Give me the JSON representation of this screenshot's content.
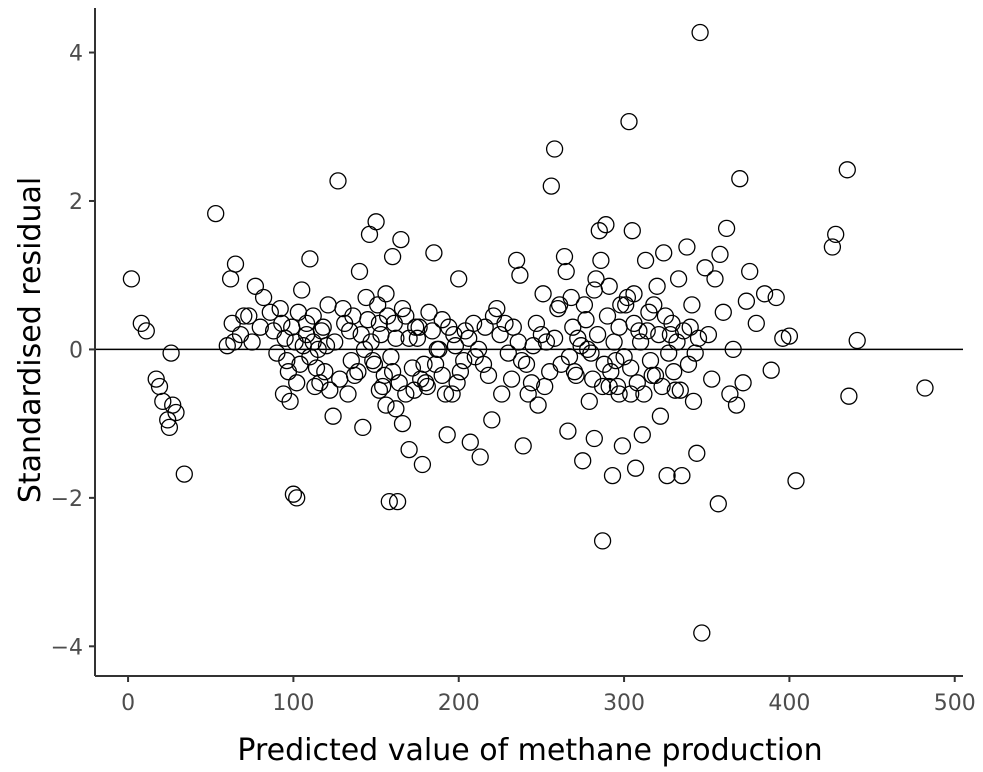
{
  "chart_data": {
    "type": "scatter",
    "title": "",
    "xlabel": "Predicted value of methane production",
    "ylabel": "Standardised residual",
    "xlim": [
      -20,
      505
    ],
    "ylim": [
      -4.4,
      4.6
    ],
    "x_ticks": [
      0,
      100,
      200,
      300,
      400,
      500
    ],
    "y_ticks": [
      -4,
      -2,
      0,
      2,
      4
    ],
    "x_tick_labels": [
      "0",
      "100",
      "200",
      "300",
      "400",
      "500"
    ],
    "y_tick_labels": [
      "−4",
      "−2",
      "0",
      "2",
      "4"
    ],
    "grid": false,
    "reference_line_y": 0,
    "marker": "open-circle",
    "points": [
      [
        2,
        0.95
      ],
      [
        8,
        0.35
      ],
      [
        11,
        0.25
      ],
      [
        17,
        -0.4
      ],
      [
        19,
        -0.5
      ],
      [
        21,
        -0.7
      ],
      [
        24,
        -0.95
      ],
      [
        25,
        -1.05
      ],
      [
        27,
        -0.75
      ],
      [
        29,
        -0.85
      ],
      [
        26,
        -0.05
      ],
      [
        34,
        -1.68
      ],
      [
        53,
        1.83
      ],
      [
        62,
        0.95
      ],
      [
        65,
        1.15
      ],
      [
        64,
        0.1
      ],
      [
        70,
        0.45
      ],
      [
        77,
        0.85
      ],
      [
        82,
        0.7
      ],
      [
        80,
        0.3
      ],
      [
        88,
        0.25
      ],
      [
        92,
        0.55
      ],
      [
        95,
        0.15
      ],
      [
        94,
        -0.6
      ],
      [
        98,
        -0.7
      ],
      [
        100,
        -1.95
      ],
      [
        102,
        -2.0
      ],
      [
        103,
        0.5
      ],
      [
        105,
        0.8
      ],
      [
        108,
        0.35
      ],
      [
        110,
        1.22
      ],
      [
        112,
        0.1
      ],
      [
        114,
        -0.25
      ],
      [
        116,
        -0.45
      ],
      [
        118,
        0.3
      ],
      [
        120,
        0.05
      ],
      [
        122,
        -0.55
      ],
      [
        124,
        -0.9
      ],
      [
        127,
        2.27
      ],
      [
        130,
        0.55
      ],
      [
        134,
        0.25
      ],
      [
        137,
        -0.35
      ],
      [
        140,
        1.05
      ],
      [
        142,
        -1.05
      ],
      [
        144,
        0.7
      ],
      [
        146,
        1.55
      ],
      [
        148,
        -0.15
      ],
      [
        150,
        1.72
      ],
      [
        152,
        0.35
      ],
      [
        154,
        -0.5
      ],
      [
        156,
        -0.75
      ],
      [
        158,
        -2.05
      ],
      [
        160,
        1.25
      ],
      [
        162,
        0.15
      ],
      [
        163,
        -2.05
      ],
      [
        165,
        1.48
      ],
      [
        166,
        -1.0
      ],
      [
        168,
        0.45
      ],
      [
        170,
        -1.35
      ],
      [
        172,
        -0.25
      ],
      [
        174,
        0.3
      ],
      [
        178,
        -1.55
      ],
      [
        180,
        -0.45
      ],
      [
        185,
        1.3
      ],
      [
        188,
        0.0
      ],
      [
        190,
        -0.35
      ],
      [
        193,
        -1.15
      ],
      [
        196,
        -0.6
      ],
      [
        200,
        0.95
      ],
      [
        204,
        0.25
      ],
      [
        207,
        -1.25
      ],
      [
        210,
        -0.1
      ],
      [
        213,
        -1.45
      ],
      [
        216,
        0.3
      ],
      [
        220,
        -0.95
      ],
      [
        223,
        0.55
      ],
      [
        228,
        0.35
      ],
      [
        232,
        -0.4
      ],
      [
        235,
        1.2
      ],
      [
        237,
        1.0
      ],
      [
        239,
        -1.3
      ],
      [
        242,
        -0.6
      ],
      [
        245,
        0.05
      ],
      [
        248,
        -0.75
      ],
      [
        251,
        0.75
      ],
      [
        253,
        0.1
      ],
      [
        256,
        2.2
      ],
      [
        258,
        2.7
      ],
      [
        260,
        0.55
      ],
      [
        264,
        1.25
      ],
      [
        265,
        1.05
      ],
      [
        266,
        -1.1
      ],
      [
        268,
        0.7
      ],
      [
        270,
        -0.3
      ],
      [
        272,
        0.15
      ],
      [
        275,
        -1.5
      ],
      [
        277,
        0.4
      ],
      [
        280,
        -0.05
      ],
      [
        282,
        -1.2
      ],
      [
        283,
        0.95
      ],
      [
        285,
        1.6
      ],
      [
        286,
        1.2
      ],
      [
        287,
        -2.58
      ],
      [
        289,
        1.68
      ],
      [
        291,
        -0.5
      ],
      [
        293,
        -1.7
      ],
      [
        295,
        -0.15
      ],
      [
        297,
        0.3
      ],
      [
        299,
        -1.3
      ],
      [
        301,
        0.6
      ],
      [
        303,
        3.07
      ],
      [
        304,
        -0.6
      ],
      [
        305,
        1.6
      ],
      [
        306,
        0.75
      ],
      [
        307,
        -1.6
      ],
      [
        309,
        0.25
      ],
      [
        311,
        -1.15
      ],
      [
        313,
        1.2
      ],
      [
        315,
        0.5
      ],
      [
        317,
        -0.35
      ],
      [
        320,
        0.85
      ],
      [
        322,
        -0.9
      ],
      [
        324,
        1.3
      ],
      [
        326,
        -1.7
      ],
      [
        328,
        0.2
      ],
      [
        331,
        -0.55
      ],
      [
        333,
        0.95
      ],
      [
        335,
        -1.7
      ],
      [
        338,
        1.38
      ],
      [
        340,
        0.3
      ],
      [
        342,
        -0.7
      ],
      [
        344,
        -1.4
      ],
      [
        346,
        4.27
      ],
      [
        347,
        -3.82
      ],
      [
        349,
        1.1
      ],
      [
        351,
        0.2
      ],
      [
        353,
        -0.4
      ],
      [
        355,
        0.95
      ],
      [
        357,
        -2.08
      ],
      [
        358,
        1.28
      ],
      [
        360,
        0.5
      ],
      [
        362,
        1.63
      ],
      [
        364,
        -0.6
      ],
      [
        366,
        0.0
      ],
      [
        368,
        -0.75
      ],
      [
        370,
        2.3
      ],
      [
        372,
        -0.45
      ],
      [
        374,
        0.65
      ],
      [
        376,
        1.05
      ],
      [
        380,
        0.35
      ],
      [
        385,
        0.75
      ],
      [
        389,
        -0.28
      ],
      [
        392,
        0.7
      ],
      [
        396,
        0.15
      ],
      [
        400,
        0.18
      ],
      [
        404,
        -1.77
      ],
      [
        426,
        1.38
      ],
      [
        428,
        1.55
      ],
      [
        435,
        2.42
      ],
      [
        436,
        -0.63
      ],
      [
        441,
        0.12
      ],
      [
        482,
        -0.52
      ],
      [
        108,
        0.2
      ],
      [
        110,
        -0.1
      ],
      [
        112,
        0.45
      ],
      [
        115,
        0.0
      ],
      [
        117,
        0.25
      ],
      [
        119,
        -0.3
      ],
      [
        121,
        0.6
      ],
      [
        113,
        -0.5
      ],
      [
        106,
        0.05
      ],
      [
        104,
        -0.2
      ],
      [
        99,
        0.3
      ],
      [
        96,
        -0.15
      ],
      [
        101,
        0.1
      ],
      [
        145,
        0.4
      ],
      [
        147,
        0.1
      ],
      [
        149,
        -0.2
      ],
      [
        151,
        0.6
      ],
      [
        153,
        0.2
      ],
      [
        155,
        -0.35
      ],
      [
        157,
        0.45
      ],
      [
        159,
        -0.1
      ],
      [
        161,
        0.35
      ],
      [
        164,
        -0.45
      ],
      [
        166,
        0.55
      ],
      [
        168,
        -0.6
      ],
      [
        143,
        0.0
      ],
      [
        139,
        -0.3
      ],
      [
        136,
        0.45
      ],
      [
        133,
        -0.6
      ],
      [
        141,
        0.2
      ],
      [
        162,
        -0.8
      ],
      [
        160,
        -0.3
      ],
      [
        156,
        0.75
      ],
      [
        152,
        -0.55
      ],
      [
        175,
        0.15
      ],
      [
        177,
        -0.4
      ],
      [
        182,
        0.5
      ],
      [
        186,
        -0.2
      ],
      [
        184,
        0.25
      ],
      [
        190,
        0.4
      ],
      [
        192,
        -0.6
      ],
      [
        197,
        0.2
      ],
      [
        199,
        -0.45
      ],
      [
        203,
        -0.15
      ],
      [
        206,
        0.15
      ],
      [
        212,
        0.0
      ],
      [
        218,
        -0.35
      ],
      [
        225,
        0.2
      ],
      [
        230,
        -0.05
      ],
      [
        236,
        0.1
      ],
      [
        241,
        -0.2
      ],
      [
        247,
        0.35
      ],
      [
        252,
        -0.5
      ],
      [
        258,
        0.15
      ],
      [
        262,
        -0.2
      ],
      [
        267,
        -0.1
      ],
      [
        271,
        -0.35
      ],
      [
        274,
        0.05
      ],
      [
        278,
        0.0
      ],
      [
        281,
        -0.4
      ],
      [
        284,
        0.2
      ],
      [
        288,
        -0.2
      ],
      [
        290,
        0.45
      ],
      [
        292,
        -0.3
      ],
      [
        294,
        0.1
      ],
      [
        296,
        -0.5
      ],
      [
        298,
        0.6
      ],
      [
        300,
        -0.1
      ],
      [
        302,
        0.7
      ],
      [
        304,
        -0.25
      ],
      [
        306,
        0.35
      ],
      [
        308,
        -0.45
      ],
      [
        310,
        0.1
      ],
      [
        312,
        -0.6
      ],
      [
        314,
        0.25
      ],
      [
        316,
        -0.15
      ],
      [
        318,
        0.6
      ],
      [
        319,
        -0.35
      ],
      [
        321,
        0.2
      ],
      [
        323,
        -0.5
      ],
      [
        325,
        0.45
      ],
      [
        327,
        -0.05
      ],
      [
        329,
        0.35
      ],
      [
        330,
        -0.3
      ],
      [
        332,
        0.1
      ],
      [
        334,
        -0.55
      ],
      [
        336,
        0.25
      ],
      [
        339,
        -0.2
      ],
      [
        341,
        0.6
      ],
      [
        343,
        -0.05
      ],
      [
        345,
        0.15
      ],
      [
        60,
        0.05
      ],
      [
        63,
        0.35
      ],
      [
        68,
        0.2
      ],
      [
        73,
        0.45
      ],
      [
        75,
        0.1
      ],
      [
        86,
        0.5
      ],
      [
        90,
        -0.05
      ],
      [
        93,
        0.35
      ],
      [
        97,
        -0.3
      ],
      [
        102,
        -0.45
      ],
      [
        125,
        0.1
      ],
      [
        128,
        -0.4
      ],
      [
        131,
        0.35
      ],
      [
        135,
        -0.15
      ],
      [
        170,
        0.15
      ],
      [
        173,
        -0.55
      ],
      [
        176,
        0.3
      ],
      [
        179,
        -0.2
      ],
      [
        181,
        -0.5
      ],
      [
        187,
        0.0
      ],
      [
        194,
        0.3
      ],
      [
        198,
        0.05
      ],
      [
        201,
        -0.3
      ],
      [
        209,
        0.35
      ],
      [
        215,
        -0.2
      ],
      [
        221,
        0.45
      ],
      [
        226,
        -0.6
      ],
      [
        233,
        0.3
      ],
      [
        238,
        -0.15
      ],
      [
        244,
        -0.45
      ],
      [
        250,
        0.2
      ],
      [
        255,
        -0.3
      ],
      [
        261,
        0.6
      ],
      [
        269,
        0.3
      ],
      [
        276,
        0.6
      ],
      [
        279,
        -0.7
      ],
      [
        282,
        0.8
      ],
      [
        287,
        -0.5
      ],
      [
        291,
        0.85
      ],
      [
        297,
        -0.6
      ]
    ]
  }
}
